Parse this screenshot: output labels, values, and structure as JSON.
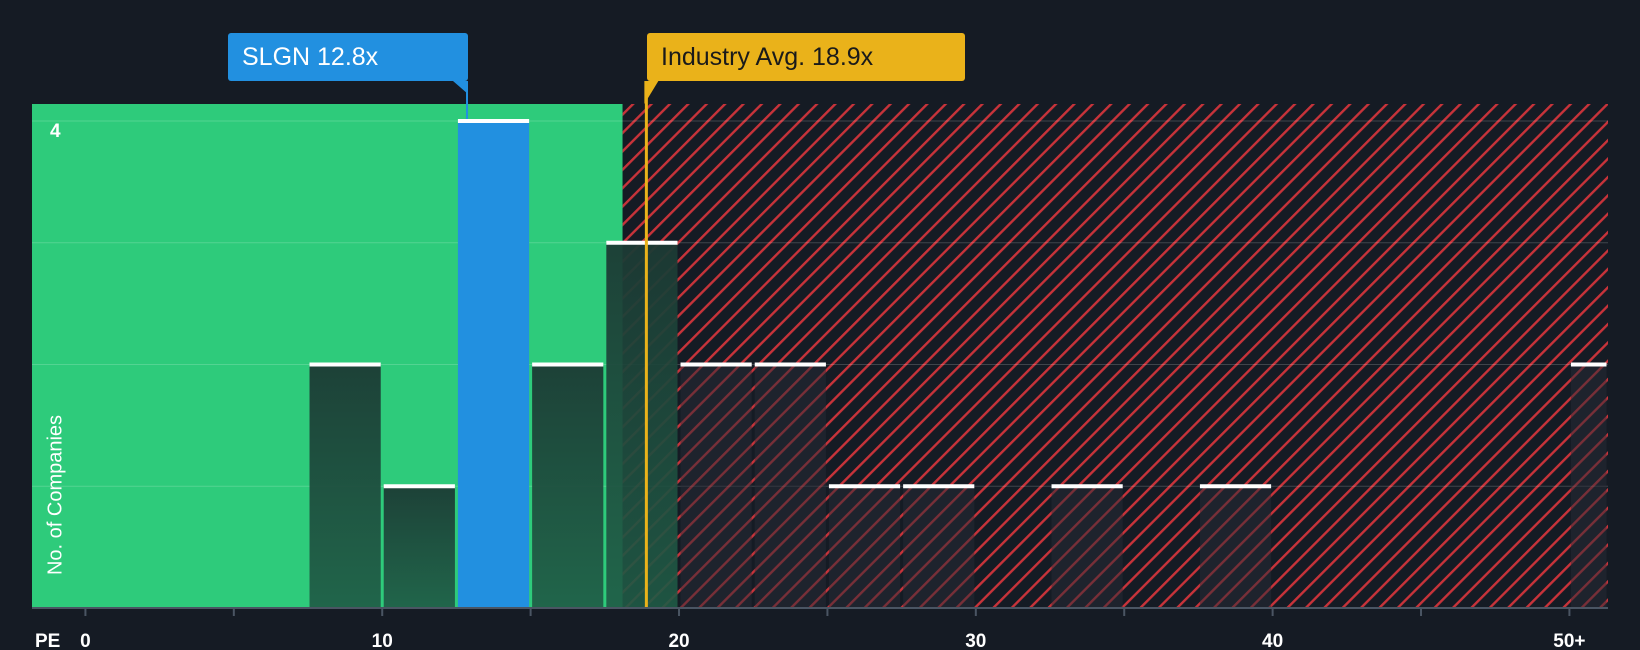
{
  "chart_data": {
    "type": "bar",
    "title": "",
    "xlabel": "PE",
    "ylabel": "No. of Companies",
    "x_tick_labels": [
      "0",
      "10",
      "20",
      "30",
      "40",
      "50+"
    ],
    "x_tick_values": [
      0,
      10,
      20,
      30,
      40,
      50
    ],
    "xlim": [
      -1.8,
      51.3
    ],
    "ylim": [
      0,
      4
    ],
    "y_tick_labels": [
      "4"
    ],
    "y_tick_values": [
      4
    ],
    "bin_width": 2.5,
    "bins": [
      {
        "x_start": 7.5,
        "x_end": 10,
        "value": 2
      },
      {
        "x_start": 10,
        "x_end": 12.5,
        "value": 1
      },
      {
        "x_start": 12.5,
        "x_end": 15,
        "value": 4,
        "highlight": "company"
      },
      {
        "x_start": 15,
        "x_end": 17.5,
        "value": 2
      },
      {
        "x_start": 17.5,
        "x_end": 20,
        "value": 3
      },
      {
        "x_start": 20,
        "x_end": 22.5,
        "value": 2
      },
      {
        "x_start": 22.5,
        "x_end": 25,
        "value": 2
      },
      {
        "x_start": 25,
        "x_end": 27.5,
        "value": 1
      },
      {
        "x_start": 27.5,
        "x_end": 30,
        "value": 1
      },
      {
        "x_start": 32.5,
        "x_end": 35,
        "value": 1
      },
      {
        "x_start": 37.5,
        "x_end": 40,
        "value": 1
      },
      {
        "x_start": 50,
        "x_end": 51.3,
        "value": 2
      }
    ],
    "fair_range_end": 18.1,
    "company": {
      "ticker": "SLGN",
      "value": 12.8,
      "label": "SLGN 12.8x"
    },
    "industry": {
      "value": 18.9,
      "label": "Industry Avg. 18.9x"
    },
    "colors": {
      "background": "#151b24",
      "undervalued_zone": "#2ecb7b",
      "overvalued_hatch": "#c8333a",
      "company_bar": "#2290e0",
      "industry_line": "#eab21a",
      "bar_cap": "#ffffff"
    }
  }
}
